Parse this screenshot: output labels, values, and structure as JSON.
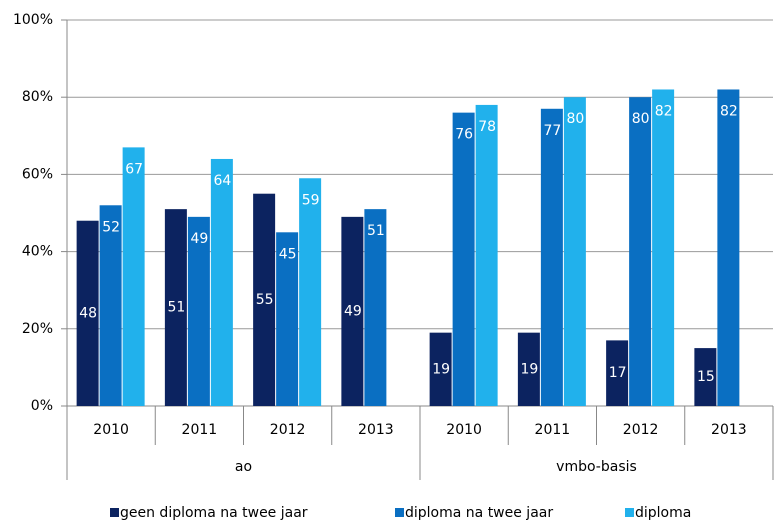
{
  "chart_data": {
    "type": "bar",
    "categories": [
      "2010",
      "2011",
      "2012",
      "2013",
      "2010",
      "2011",
      "2012",
      "2013"
    ],
    "category_groups": [
      "ao",
      "vmbo-basis"
    ],
    "series": [
      {
        "name": "geen diploma na twee jaar",
        "color": "#0c2360",
        "values": [
          48,
          51,
          55,
          49,
          19,
          19,
          17,
          15
        ]
      },
      {
        "name": "diploma na twee jaar",
        "color": "#0a6fc2",
        "values": [
          52,
          49,
          45,
          51,
          76,
          77,
          80,
          82
        ]
      },
      {
        "name": "diploma",
        "color": "#21b1ec",
        "values": [
          67,
          64,
          59,
          null,
          78,
          80,
          82,
          null
        ]
      }
    ],
    "ylim": [
      0,
      100
    ],
    "yticks": [
      {
        "value": 0,
        "label": "0%"
      },
      {
        "value": 20,
        "label": "20%"
      },
      {
        "value": 40,
        "label": "40%"
      },
      {
        "value": 60,
        "label": "60%"
      },
      {
        "value": 80,
        "label": "80%"
      },
      {
        "value": 100,
        "label": "100%"
      }
    ],
    "grid": true
  }
}
